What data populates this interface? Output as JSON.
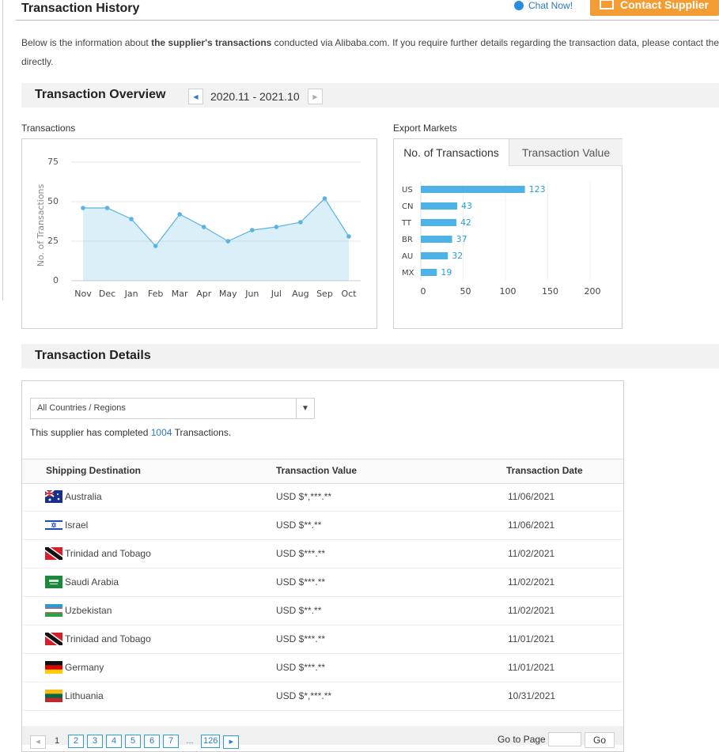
{
  "header": {
    "title": "Transaction History",
    "chat": "Chat Now!",
    "contact": "Contact Supplier"
  },
  "intro": {
    "before": "Below is the information about ",
    "bold": "the supplier's transactions",
    "after": " conducted via Alibaba.com. If you require further details regarding the transaction data, please contact the",
    "line2": "directly."
  },
  "overview": {
    "title": "Transaction Overview",
    "range": "2020.11 - 2021.10"
  },
  "export_tabs": [
    "No. of Transactions",
    "Transaction Value"
  ],
  "chart_data": [
    {
      "type": "line",
      "title": "Transactions",
      "y_label": "No. of Transactions",
      "categories": [
        "Nov",
        "Dec",
        "Jan",
        "Feb",
        "Mar",
        "Apr",
        "May",
        "Jun",
        "Jul",
        "Aug",
        "Sep",
        "Oct"
      ],
      "values": [
        46,
        46,
        39,
        22,
        42,
        34,
        25,
        32,
        34,
        37,
        52,
        28
      ],
      "color": "#5ab4e0",
      "ylim": [
        0,
        75
      ],
      "yticks": [
        0,
        25,
        50,
        75
      ],
      "grid": true
    },
    {
      "type": "bar",
      "orientation": "horizontal",
      "title": "Export Markets",
      "categories": [
        "US",
        "CN",
        "TT",
        "BR",
        "AU",
        "MX"
      ],
      "values": [
        123,
        43,
        42,
        37,
        32,
        19
      ],
      "color": "#4db3e6",
      "xlim": [
        0,
        200
      ],
      "xticks": [
        0,
        50,
        100,
        150,
        200
      ],
      "grid": true
    }
  ],
  "details": {
    "title": "Transaction Details",
    "select": "All Countries / Regions",
    "summary_before": "This supplier has completed ",
    "count": 1004,
    "summary_after": " Transactions."
  },
  "table": {
    "columns": [
      "Shipping Destination",
      "Transaction Value",
      "Transaction Date"
    ],
    "rows": [
      [
        "Australia",
        "USD $*,***.**",
        "11/06/2021"
      ],
      [
        "Israel",
        "USD $**.**",
        "11/06/2021"
      ],
      [
        "Trinidad and Tobago",
        "USD $***.**",
        "11/02/2021"
      ],
      [
        "Saudi Arabia",
        "USD $***.**",
        "11/02/2021"
      ],
      [
        "Uzbekistan",
        "USD $**.**",
        "11/02/2021"
      ],
      [
        "Trinidad and Tobago",
        "USD $***.**",
        "11/01/2021"
      ],
      [
        "Germany",
        "USD $***.**",
        "11/01/2021"
      ],
      [
        "Lithuania",
        "USD $*,***.**",
        "10/31/2021"
      ]
    ]
  },
  "pagination": {
    "pages": [
      "1",
      "2",
      "3",
      "4",
      "5",
      "6",
      "7",
      "...",
      "126"
    ],
    "goto": "Go to Page",
    "go": "Go"
  }
}
